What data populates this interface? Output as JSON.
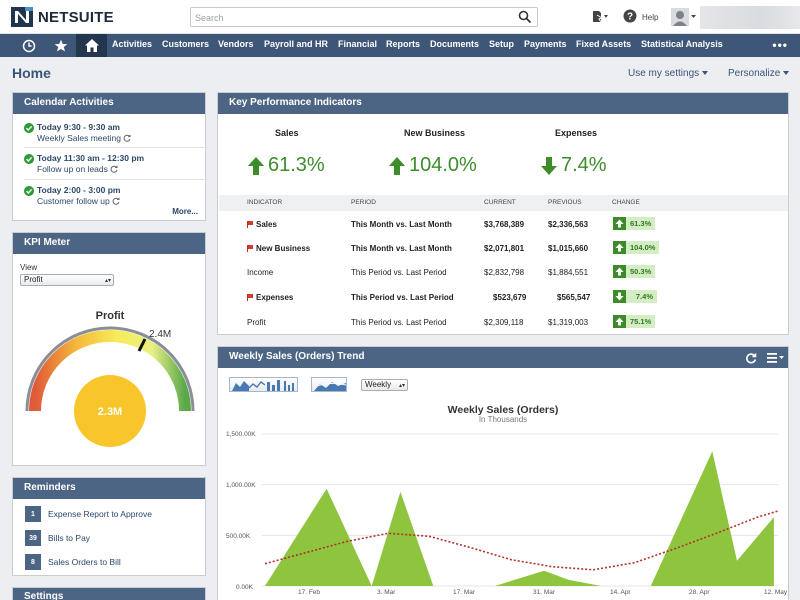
{
  "brand": {
    "name": "NETSUITE"
  },
  "search": {
    "placeholder": "Search"
  },
  "topbar": {
    "help_label": "Help"
  },
  "nav": {
    "items": [
      "Activities",
      "Customers",
      "Vendors",
      "Payroll and HR",
      "Financial",
      "Reports",
      "Documents",
      "Setup",
      "Payments",
      "Fixed Assets",
      "Statistical Analysis"
    ],
    "more": "•••"
  },
  "page": {
    "title": "Home",
    "use_settings": "Use my settings",
    "personalize": "Personalize"
  },
  "calendar": {
    "title": "Calendar Activities",
    "items": [
      {
        "time": "Today 9:30 - 9:30 am",
        "subject": "Weekly Sales meeting"
      },
      {
        "time": "Today 11:30 am - 12:30 pm",
        "subject": "Follow up on leads"
      },
      {
        "time": "Today 2:00 - 3:00 pm",
        "subject": "Customer follow up"
      }
    ],
    "more": "More..."
  },
  "kpi_meter": {
    "title": "KPI Meter",
    "view_label": "View",
    "view_value": "Profit",
    "gauge_title": "Profit",
    "target_label": "2.4M",
    "value_label": "2.3M",
    "value_fraction": 0.96
  },
  "reminders": {
    "title": "Reminders",
    "items": [
      {
        "count": "1",
        "label": "Expense Report to Approve"
      },
      {
        "count": "39",
        "label": "Bills to Pay"
      },
      {
        "count": "8",
        "label": "Sales Orders to Bill"
      }
    ]
  },
  "settings": {
    "title": "Settings"
  },
  "kpi": {
    "title": "Key Performance Indicators",
    "highlights": [
      {
        "label": "Sales",
        "value": "61.3%",
        "direction": "up"
      },
      {
        "label": "New Business",
        "value": "104.0%",
        "direction": "up"
      },
      {
        "label": "Expenses",
        "value": "7.4%",
        "direction": "down"
      }
    ],
    "columns": [
      "INDICATOR",
      "PERIOD",
      "CURRENT",
      "PREVIOUS",
      "CHANGE"
    ],
    "rows": [
      {
        "indicator": "Sales",
        "flag": true,
        "bold": true,
        "period": "This Month vs. Last Month",
        "current": "$3,768,389",
        "previous": "$2,336,563",
        "change": "61.3%",
        "direction": "up"
      },
      {
        "indicator": "New Business",
        "flag": true,
        "bold": true,
        "period": "This Month vs. Last Month",
        "current": "$2,071,801",
        "previous": "$1,015,660",
        "change": "104.0%",
        "direction": "up"
      },
      {
        "indicator": "Income",
        "flag": false,
        "bold": false,
        "period": "This Period vs. Last Period",
        "current": "$2,832,798",
        "previous": "$1,884,551",
        "change": "50.3%",
        "direction": "up"
      },
      {
        "indicator": "Expenses",
        "flag": true,
        "bold": true,
        "period": "This Period vs. Last Period",
        "current": "$523,679",
        "previous": "$565,547",
        "change": "7.4%",
        "direction": "down"
      },
      {
        "indicator": "Profit",
        "flag": false,
        "bold": false,
        "period": "This Period vs. Last Period",
        "current": "$2,309,118",
        "previous": "$1,319,003",
        "change": "75.1%",
        "direction": "up"
      }
    ]
  },
  "trend": {
    "title": "Weekly Sales (Orders) Trend",
    "period_select": "Weekly",
    "chart_title": "Weekly Sales (Orders)",
    "chart_subtitle": "In Thousands"
  },
  "chart_data": {
    "type": "area",
    "title": "Weekly Sales (Orders)",
    "subtitle": "In Thousands",
    "y_ticks": [
      "0.00K",
      "500.00K",
      "1,000.00K",
      "1,500.00K"
    ],
    "ylim": [
      0,
      1500
    ],
    "x_ticks": [
      "17. Feb",
      "3. Mar",
      "17. Mar",
      "31. Mar",
      "14. Apr",
      "28. Apr",
      "12. May"
    ],
    "x": [
      0,
      0.5,
      1,
      1.5,
      2,
      2.5,
      3,
      3.5,
      4,
      4.5,
      5,
      5.5,
      6,
      6.5,
      7,
      7.5,
      8,
      8.5,
      9,
      9.5,
      10,
      10.5,
      11,
      11.5,
      12,
      12.5
    ],
    "series": [
      {
        "values": [
          0,
          0,
          540,
          980,
          0,
          0,
          920,
          0,
          0,
          0,
          80,
          0,
          150,
          100,
          0,
          0,
          300,
          600,
          1330,
          250,
          680,
          0,
          0,
          0,
          0,
          0
        ]
      }
    ],
    "area_points": [
      [
        0,
        0
      ],
      [
        1.5,
        960
      ],
      [
        2.6,
        0
      ],
      [
        3.3,
        930
      ],
      [
        4.1,
        0
      ],
      [
        5.6,
        0
      ],
      [
        6.8,
        150
      ],
      [
        7.4,
        60
      ],
      [
        8.2,
        0
      ],
      [
        9.4,
        0
      ],
      [
        10.9,
        1330
      ],
      [
        11.5,
        250
      ],
      [
        12.4,
        680
      ]
    ],
    "trend_line": [
      [
        0,
        220
      ],
      [
        1,
        330
      ],
      [
        2,
        440
      ],
      [
        3,
        520
      ],
      [
        4,
        490
      ],
      [
        5,
        380
      ],
      [
        6,
        260
      ],
      [
        7,
        190
      ],
      [
        8,
        160
      ],
      [
        9,
        230
      ],
      [
        10,
        370
      ],
      [
        11,
        520
      ],
      [
        12,
        680
      ],
      [
        12.5,
        740
      ]
    ],
    "colors": {
      "area": "#8fc43f",
      "trend": "#b0322a"
    }
  }
}
